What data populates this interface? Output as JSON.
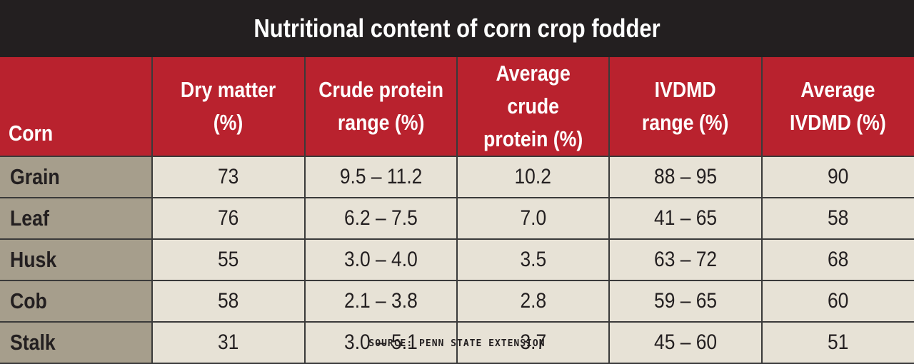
{
  "chart_data": {
    "type": "table",
    "title": "Nutritional content of corn crop fodder",
    "columns": [
      "Corn",
      "Dry matter (%)",
      "Crude protein range (%)",
      "Average crude protein (%)",
      "IVDMD range (%)",
      "Average IVDMD (%)"
    ],
    "column_lines": [
      "Corn",
      "Dry matter\n(%)",
      "Crude protein\nrange (%)",
      "Average crude\nprotein (%)",
      "IVDMD\nrange (%)",
      "Average\nIVDMD (%)"
    ],
    "rows": [
      [
        "Grain",
        "73",
        "9.5 – 11.2",
        "10.2",
        "88 – 95",
        "90"
      ],
      [
        "Leaf",
        "76",
        "6.2 – 7.5",
        "7.0",
        "41 – 65",
        "58"
      ],
      [
        "Husk",
        "55",
        "3.0 – 4.0",
        "3.5",
        "63 – 72",
        "68"
      ],
      [
        "Cob",
        "58",
        "2.1 – 3.8",
        "2.8",
        "59 – 65",
        "60"
      ],
      [
        "Stalk",
        "31",
        "3.0 – 5.1",
        "3.7",
        "45 – 60",
        "51"
      ]
    ],
    "source": "SOURCE: PENN STATE EXTENSION"
  },
  "colors": {
    "title_background": "#231f20",
    "header_background": "#b9222e",
    "row_label_background": "#a69e8c",
    "cell_background": "#e7e2d6"
  }
}
